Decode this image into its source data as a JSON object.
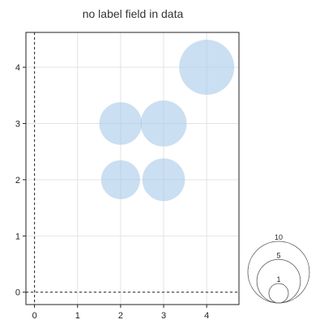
{
  "chart_data": {
    "type": "scatter",
    "title": "no label field in data",
    "xlabel": "",
    "ylabel": "",
    "xlim": [
      -0.2,
      4.75
    ],
    "ylim": [
      -0.22,
      4.62
    ],
    "x_ticks": [
      0,
      1,
      2,
      3,
      4
    ],
    "y_ticks": [
      0,
      1,
      2,
      3,
      4
    ],
    "x_tick_labels": [
      "0",
      "1",
      "2",
      "3",
      "4"
    ],
    "y_tick_labels": [
      "0",
      "1",
      "2",
      "3",
      "4"
    ],
    "grid": true,
    "zero_lines": true,
    "marker_color": "#a9c9ea",
    "points": [
      {
        "x": 2,
        "y": 2,
        "size": 5
      },
      {
        "x": 3,
        "y": 2,
        "size": 6
      },
      {
        "x": 2,
        "y": 3,
        "size": 6
      },
      {
        "x": 3,
        "y": 3,
        "size": 7
      },
      {
        "x": 4,
        "y": 4,
        "size": 10
      }
    ],
    "size_legend": {
      "placement": "bottom-right",
      "values": [
        10,
        5,
        1
      ],
      "labels": [
        "10",
        "5",
        "1"
      ]
    }
  }
}
